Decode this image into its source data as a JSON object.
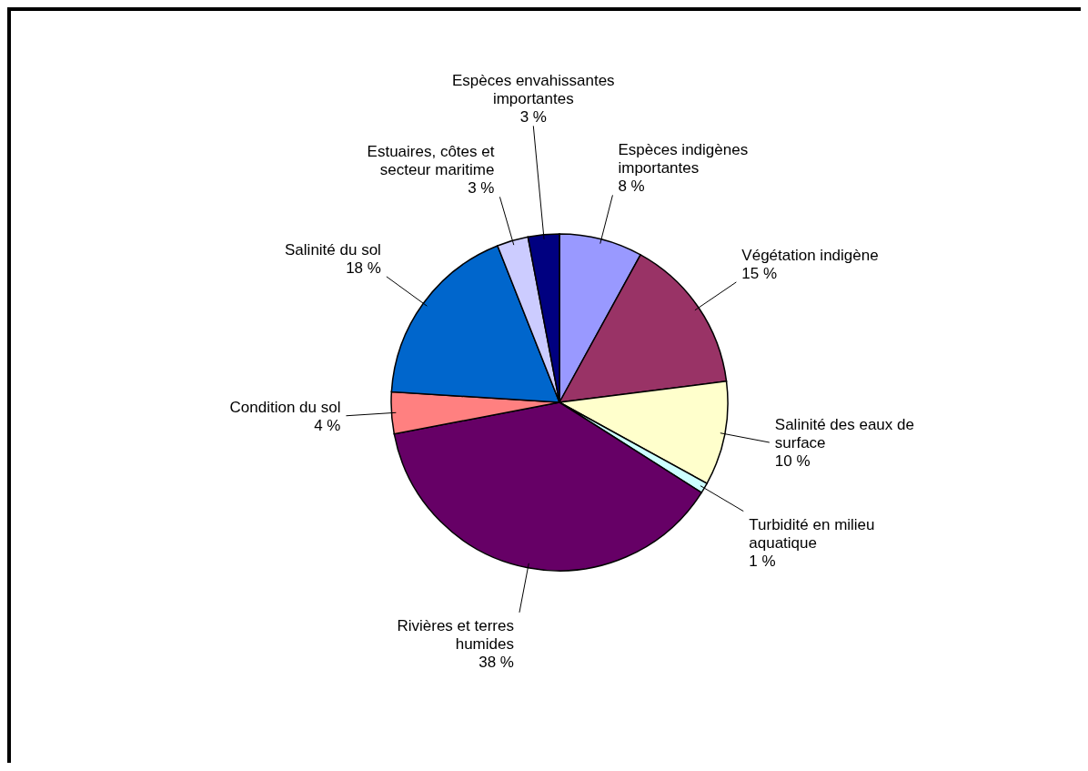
{
  "chart_data": {
    "type": "pie",
    "categories": [
      "Espèces indigènes importantes",
      "Végétation indigène",
      "Salinité des eaux de surface",
      "Turbidité en milieu aquatique",
      "Rivières et terres humides",
      "Condition du sol",
      "Salinité du sol",
      "Estuaires, côtes et secteur maritime",
      "Espèces envahissantes importantes"
    ],
    "values": [
      8,
      15,
      10,
      1,
      38,
      4,
      18,
      3,
      3
    ],
    "value_labels": [
      "8 %",
      "15 %",
      "10 %",
      "1 %",
      "38 %",
      "4 %",
      "18 %",
      "3 %",
      "3 %"
    ],
    "colors": [
      "#9999ff",
      "#993366",
      "#ffffcc",
      "#ccffff",
      "#660066",
      "#ff8080",
      "#0066cc",
      "#ccccff",
      "#000080"
    ]
  }
}
